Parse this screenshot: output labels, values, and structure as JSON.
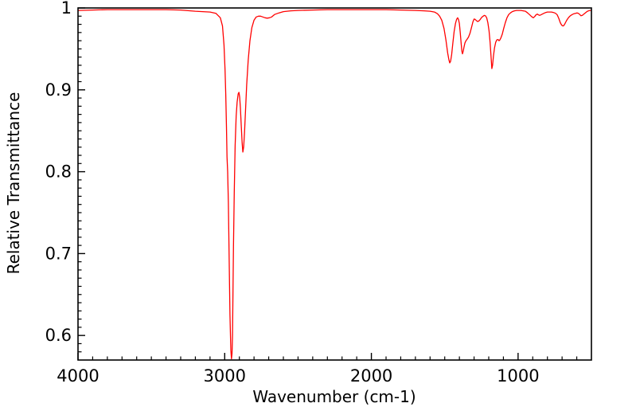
{
  "chart_data": {
    "type": "line",
    "title": "",
    "xlabel": "Wavenumber (cm-1)",
    "ylabel": "Relative Transmittance",
    "xlim": [
      4000,
      500
    ],
    "ylim": [
      0.57,
      1.0
    ],
    "x_axis_reversed": true,
    "grid": false,
    "legend": "none",
    "line_color": "#ff0000",
    "axis_color": "#000000",
    "background_color": "#ffffff",
    "x_major_ticks": [
      4000,
      3000,
      2000,
      1000
    ],
    "x_tick_labels": [
      "4000",
      "3000",
      "2000",
      "1000"
    ],
    "x_minor_tick_step": 100,
    "y_major_ticks": [
      1.0,
      0.9,
      0.8,
      0.7,
      0.6
    ],
    "y_tick_labels": [
      "1",
      "0.9",
      "0.8",
      "0.7",
      "0.6"
    ],
    "y_minor_tick_step": 0.01,
    "tick_direction": "in",
    "series": [
      {
        "name": "IR transmittance spectrum",
        "points": [
          [
            4000,
            0.997
          ],
          [
            3900,
            0.9975
          ],
          [
            3800,
            0.998
          ],
          [
            3700,
            0.998
          ],
          [
            3600,
            0.998
          ],
          [
            3500,
            0.998
          ],
          [
            3400,
            0.998
          ],
          [
            3300,
            0.9975
          ],
          [
            3200,
            0.996
          ],
          [
            3150,
            0.9955
          ],
          [
            3100,
            0.995
          ],
          [
            3060,
            0.9935
          ],
          [
            3030,
            0.988
          ],
          [
            3015,
            0.978
          ],
          [
            3005,
            0.955
          ],
          [
            2998,
            0.925
          ],
          [
            2993,
            0.895
          ],
          [
            2988,
            0.855
          ],
          [
            2984,
            0.818
          ],
          [
            2980,
            0.8
          ],
          [
            2975,
            0.762
          ],
          [
            2970,
            0.7
          ],
          [
            2964,
            0.625
          ],
          [
            2958,
            0.582
          ],
          [
            2954,
            0.5715
          ],
          [
            2950,
            0.578
          ],
          [
            2947,
            0.6
          ],
          [
            2944,
            0.645
          ],
          [
            2940,
            0.708
          ],
          [
            2935,
            0.775
          ],
          [
            2929,
            0.832
          ],
          [
            2922,
            0.868
          ],
          [
            2915,
            0.885
          ],
          [
            2908,
            0.895
          ],
          [
            2903,
            0.897
          ],
          [
            2898,
            0.891
          ],
          [
            2893,
            0.878
          ],
          [
            2887,
            0.856
          ],
          [
            2881,
            0.835
          ],
          [
            2876,
            0.824
          ],
          [
            2871,
            0.83
          ],
          [
            2865,
            0.848
          ],
          [
            2858,
            0.876
          ],
          [
            2850,
            0.906
          ],
          [
            2840,
            0.936
          ],
          [
            2828,
            0.96
          ],
          [
            2815,
            0.976
          ],
          [
            2800,
            0.985
          ],
          [
            2785,
            0.989
          ],
          [
            2770,
            0.99
          ],
          [
            2755,
            0.99
          ],
          [
            2740,
            0.989
          ],
          [
            2725,
            0.988
          ],
          [
            2710,
            0.9875
          ],
          [
            2695,
            0.988
          ],
          [
            2680,
            0.989
          ],
          [
            2660,
            0.992
          ],
          [
            2630,
            0.994
          ],
          [
            2600,
            0.9955
          ],
          [
            2550,
            0.9965
          ],
          [
            2500,
            0.997
          ],
          [
            2400,
            0.9975
          ],
          [
            2300,
            0.998
          ],
          [
            2200,
            0.998
          ],
          [
            2100,
            0.998
          ],
          [
            2000,
            0.998
          ],
          [
            1900,
            0.998
          ],
          [
            1800,
            0.9975
          ],
          [
            1700,
            0.997
          ],
          [
            1640,
            0.9965
          ],
          [
            1600,
            0.996
          ],
          [
            1570,
            0.995
          ],
          [
            1550,
            0.993
          ],
          [
            1535,
            0.99
          ],
          [
            1520,
            0.985
          ],
          [
            1505,
            0.975
          ],
          [
            1492,
            0.961
          ],
          [
            1480,
            0.945
          ],
          [
            1472,
            0.937
          ],
          [
            1466,
            0.933
          ],
          [
            1460,
            0.935
          ],
          [
            1453,
            0.943
          ],
          [
            1445,
            0.957
          ],
          [
            1436,
            0.971
          ],
          [
            1427,
            0.981
          ],
          [
            1419,
            0.986
          ],
          [
            1412,
            0.988
          ],
          [
            1406,
            0.986
          ],
          [
            1400,
            0.981
          ],
          [
            1394,
            0.97
          ],
          [
            1388,
            0.956
          ],
          [
            1383,
            0.947
          ],
          [
            1379,
            0.944
          ],
          [
            1374,
            0.947
          ],
          [
            1369,
            0.952
          ],
          [
            1363,
            0.957
          ],
          [
            1355,
            0.96
          ],
          [
            1347,
            0.962
          ],
          [
            1338,
            0.9645
          ],
          [
            1328,
            0.969
          ],
          [
            1318,
            0.976
          ],
          [
            1308,
            0.983
          ],
          [
            1300,
            0.9865
          ],
          [
            1292,
            0.986
          ],
          [
            1284,
            0.9845
          ],
          [
            1276,
            0.9835
          ],
          [
            1268,
            0.984
          ],
          [
            1258,
            0.986
          ],
          [
            1248,
            0.9885
          ],
          [
            1238,
            0.99
          ],
          [
            1230,
            0.991
          ],
          [
            1222,
            0.9905
          ],
          [
            1214,
            0.988
          ],
          [
            1206,
            0.982
          ],
          [
            1198,
            0.972
          ],
          [
            1191,
            0.958
          ],
          [
            1185,
            0.942
          ],
          [
            1179,
            0.926
          ],
          [
            1174,
            0.93
          ],
          [
            1168,
            0.941
          ],
          [
            1161,
            0.951
          ],
          [
            1153,
            0.958
          ],
          [
            1145,
            0.961
          ],
          [
            1137,
            0.9615
          ],
          [
            1130,
            0.96
          ],
          [
            1124,
            0.961
          ],
          [
            1117,
            0.9635
          ],
          [
            1108,
            0.968
          ],
          [
            1098,
            0.975
          ],
          [
            1087,
            0.982
          ],
          [
            1076,
            0.988
          ],
          [
            1064,
            0.992
          ],
          [
            1052,
            0.994
          ],
          [
            1040,
            0.9955
          ],
          [
            1025,
            0.9965
          ],
          [
            1010,
            0.997
          ],
          [
            995,
            0.997
          ],
          [
            980,
            0.997
          ],
          [
            965,
            0.9965
          ],
          [
            950,
            0.996
          ],
          [
            935,
            0.994
          ],
          [
            920,
            0.9915
          ],
          [
            908,
            0.9895
          ],
          [
            896,
            0.988
          ],
          [
            887,
            0.9895
          ],
          [
            878,
            0.9915
          ],
          [
            869,
            0.9925
          ],
          [
            861,
            0.9915
          ],
          [
            853,
            0.991
          ],
          [
            845,
            0.9915
          ],
          [
            835,
            0.9925
          ],
          [
            824,
            0.9935
          ],
          [
            812,
            0.9945
          ],
          [
            800,
            0.995
          ],
          [
            786,
            0.995
          ],
          [
            772,
            0.995
          ],
          [
            758,
            0.9945
          ],
          [
            745,
            0.9935
          ],
          [
            733,
            0.9915
          ],
          [
            722,
            0.987
          ],
          [
            712,
            0.982
          ],
          [
            703,
            0.979
          ],
          [
            695,
            0.978
          ],
          [
            689,
            0.9785
          ],
          [
            683,
            0.98
          ],
          [
            676,
            0.9825
          ],
          [
            668,
            0.985
          ],
          [
            659,
            0.9875
          ],
          [
            650,
            0.9895
          ],
          [
            640,
            0.991
          ],
          [
            630,
            0.992
          ],
          [
            619,
            0.993
          ],
          [
            608,
            0.9935
          ],
          [
            598,
            0.994
          ],
          [
            589,
            0.9935
          ],
          [
            580,
            0.992
          ],
          [
            571,
            0.9905
          ],
          [
            562,
            0.991
          ],
          [
            552,
            0.9925
          ],
          [
            542,
            0.994
          ],
          [
            531,
            0.9955
          ],
          [
            520,
            0.9965
          ],
          [
            509,
            0.997
          ],
          [
            500,
            0.997
          ]
        ]
      }
    ]
  }
}
